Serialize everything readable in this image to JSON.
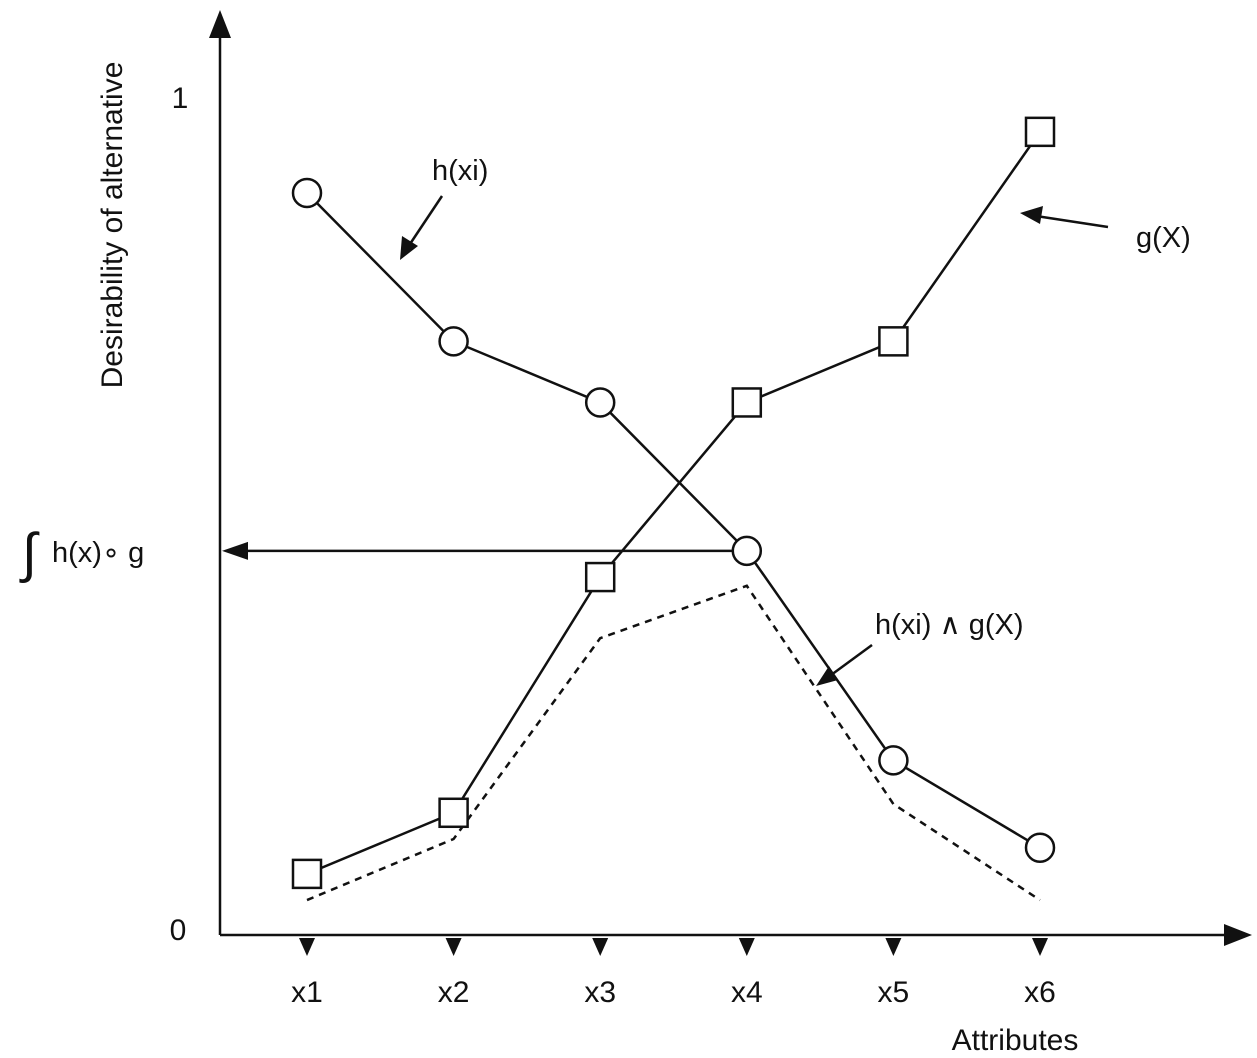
{
  "chart_data": {
    "type": "line",
    "title": "",
    "xlabel": "Attributes",
    "ylabel": "Desirability of alternative",
    "categories": [
      "x1",
      "x2",
      "x3",
      "x4",
      "x5",
      "x6"
    ],
    "ylim": [
      0,
      1
    ],
    "yticks": [
      "0",
      "1"
    ],
    "grid": false,
    "series": [
      {
        "name": "h(xi)",
        "marker": "circle",
        "style": "solid",
        "values": [
          0.85,
          0.68,
          0.61,
          0.44,
          0.2,
          0.1
        ]
      },
      {
        "name": "g(X)",
        "marker": "square",
        "style": "solid",
        "values": [
          0.07,
          0.14,
          0.41,
          0.61,
          0.68,
          0.92
        ]
      },
      {
        "name": "h(xi) ∧ g(X)",
        "marker": "none",
        "style": "dashed",
        "values": [
          0.04,
          0.11,
          0.34,
          0.4,
          0.15,
          0.04
        ]
      }
    ],
    "annotations": [
      {
        "text": "h(xi)",
        "target_series": 0
      },
      {
        "text": "g(X)",
        "target_series": 1
      },
      {
        "text": "h(xi) ∧ g(X)",
        "target_series": 2
      }
    ],
    "integral_label": {
      "symbol": "∫",
      "text": "h(x)∘ g",
      "value": 0.44
    }
  }
}
